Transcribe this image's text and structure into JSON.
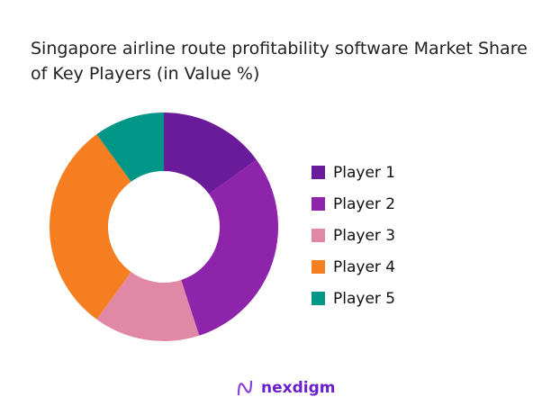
{
  "chart_data": {
    "type": "pie",
    "donut": true,
    "title": "Singapore airline route profitability software Market Share of Key Players (in Value %)",
    "categories": [
      "Player 1",
      "Player 2",
      "Player 3",
      "Player 4",
      "Player 5"
    ],
    "values": [
      15,
      30,
      15,
      30,
      10
    ],
    "colors": [
      "#6a1b9a",
      "#8e24aa",
      "#e088a6",
      "#f57f20",
      "#009688"
    ],
    "legend": "right"
  },
  "brand": {
    "name": "nexdigm",
    "color": "#6a1fc9"
  }
}
